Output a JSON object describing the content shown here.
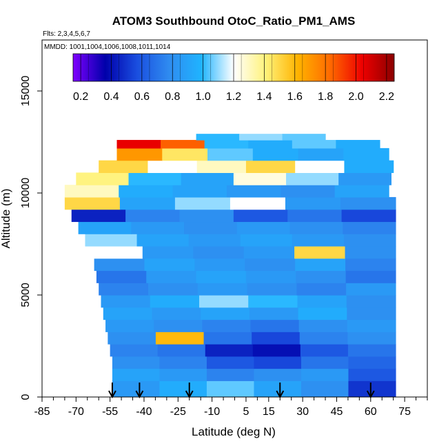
{
  "chart_data": {
    "type": "heatmap",
    "title": "ATOM3 Southbound OtoC_Ratio_PM1_AMS",
    "subtitle_flights": "Flts: 2,3,4,5,6,7",
    "subtitle_dates": "MMDD: 1001,1004,1006,1008,1011,1014",
    "xlabel": "Latitude (deg N)",
    "ylabel": "Altitude (m)",
    "xlim": [
      -85,
      85
    ],
    "ylim": [
      0,
      17500
    ],
    "x_ticks": [
      "-85",
      "-70",
      "-55",
      "-40",
      "-25",
      "-10",
      "5",
      "15",
      "30",
      "45",
      "60",
      "75"
    ],
    "x_tick_values": [
      -85,
      -70,
      -55,
      -40,
      -25,
      -10,
      5,
      15,
      30,
      45,
      60,
      75
    ],
    "y_ticks": [
      "0",
      "5000",
      "10000",
      "15000"
    ],
    "y_tick_values": [
      0,
      5000,
      10000,
      15000
    ],
    "colorbar": {
      "ticks": [
        "0.2",
        "0.4",
        "0.6",
        "0.8",
        "1.0",
        "1.2",
        "1.4",
        "1.6",
        "1.8",
        "2.0",
        "2.2"
      ],
      "tick_values": [
        0.2,
        0.4,
        0.6,
        0.8,
        1.0,
        1.2,
        1.4,
        1.6,
        1.8,
        2.0,
        2.2
      ],
      "range": [
        0.15,
        2.25
      ],
      "colors": [
        "#7f00ff",
        "#0000aa",
        "#1a4fe0",
        "#2f8cf0",
        "#1fb4ff",
        "#ffffff",
        "#fff27a",
        "#ffb300",
        "#ff6a00",
        "#ee0000",
        "#8b0000"
      ]
    },
    "arrow_latitudes": [
      -54,
      -42,
      -20,
      20,
      60
    ],
    "layers": [
      {
        "alt_range": [
          0,
          800
        ],
        "lat_range": [
          -54,
          71
        ],
        "values": [
          0.85,
          0.95,
          1.05,
          0.9,
          0.8,
          0.5
        ]
      },
      {
        "alt_range": [
          800,
          1400
        ],
        "lat_range": [
          -54,
          71
        ],
        "values": [
          0.9,
          0.85,
          0.75,
          0.8,
          0.85,
          0.6
        ]
      },
      {
        "alt_range": [
          1400,
          2000
        ],
        "lat_range": [
          -54,
          71
        ],
        "values": [
          0.8,
          0.75,
          0.6,
          0.55,
          0.7,
          0.65
        ]
      },
      {
        "alt_range": [
          2000,
          2600
        ],
        "lat_range": [
          -55,
          71
        ],
        "values": [
          0.75,
          0.7,
          0.45,
          0.4,
          0.6,
          0.7
        ]
      },
      {
        "alt_range": [
          2600,
          3200
        ],
        "lat_range": [
          -56,
          71
        ],
        "values": [
          0.8,
          1.6,
          0.7,
          0.55,
          0.75,
          0.8
        ]
      },
      {
        "alt_range": [
          3200,
          3800
        ],
        "lat_range": [
          -57,
          71
        ],
        "values": [
          0.85,
          0.8,
          0.75,
          0.7,
          0.8,
          0.85
        ]
      },
      {
        "alt_range": [
          3800,
          4400
        ],
        "lat_range": [
          -58,
          71
        ],
        "values": [
          0.9,
          0.85,
          0.9,
          0.85,
          0.95,
          0.8
        ]
      },
      {
        "alt_range": [
          4400,
          5000
        ],
        "lat_range": [
          -59,
          71
        ],
        "values": [
          0.85,
          0.95,
          1.1,
          1.0,
          0.9,
          0.8
        ]
      },
      {
        "alt_range": [
          5000,
          5600
        ],
        "lat_range": [
          -60,
          71
        ],
        "values": [
          0.75,
          0.8,
          0.85,
          0.8,
          0.75,
          0.85
        ]
      },
      {
        "alt_range": [
          5600,
          6200
        ],
        "lat_range": [
          -61,
          71
        ],
        "values": [
          0.7,
          0.85,
          0.9,
          0.85,
          0.8,
          0.7
        ]
      },
      {
        "alt_range": [
          6200,
          6800
        ],
        "lat_range": [
          -62,
          71
        ],
        "values": [
          0.8,
          0.9,
          0.85,
          0.8,
          0.9,
          0.75
        ]
      },
      {
        "alt_range": [
          6800,
          7400
        ],
        "lat_range": [
          -63,
          71
        ],
        "values": [
          1.2,
          0.85,
          0.8,
          0.85,
          1.5,
          0.8
        ]
      },
      {
        "alt_range": [
          7400,
          8000
        ],
        "lat_range": [
          -66,
          71
        ],
        "values": [
          1.1,
          0.9,
          0.85,
          0.9,
          0.85,
          0.8
        ]
      },
      {
        "alt_range": [
          8000,
          8600
        ],
        "lat_range": [
          -69,
          71
        ],
        "values": [
          0.9,
          0.85,
          0.8,
          0.85,
          0.8,
          0.75
        ]
      },
      {
        "alt_range": [
          8600,
          9200
        ],
        "lat_range": [
          -72,
          71
        ],
        "values": [
          0.45,
          0.75,
          0.8,
          0.6,
          0.7,
          0.55
        ]
      },
      {
        "alt_range": [
          9200,
          9800
        ],
        "lat_range": [
          -75,
          71
        ],
        "values": [
          1.5,
          0.9,
          1.1,
          1.2,
          0.85,
          0.8
        ]
      },
      {
        "alt_range": [
          9800,
          10400
        ],
        "lat_range": [
          -75,
          68
        ],
        "values": [
          1.3,
          0.95,
          0.9,
          0.85,
          0.8,
          0.9
        ]
      },
      {
        "alt_range": [
          10400,
          11000
        ],
        "lat_range": [
          -70,
          69
        ],
        "values": [
          1.4,
          1.0,
          0.9,
          1.25,
          1.1,
          0.85
        ]
      },
      {
        "alt_range": [
          11000,
          11600
        ],
        "lat_range": [
          -60,
          70
        ],
        "values": [
          1.5,
          1.2,
          1.3,
          1.5,
          1.2,
          0.95
        ]
      },
      {
        "alt_range": [
          11600,
          12200
        ],
        "lat_range": [
          -52,
          68
        ],
        "values": [
          1.7,
          1.45,
          1.05,
          0.95,
          0.9,
          0.95
        ]
      },
      {
        "alt_range": [
          12200,
          12600
        ],
        "lat_range": [
          -52,
          64
        ],
        "values": [
          2.05,
          1.85,
          1.0,
          0.95,
          1.05,
          0.95
        ]
      },
      {
        "alt_range": [
          12600,
          12900
        ],
        "lat_range": [
          -17,
          40
        ],
        "values": [
          1.0,
          1.1,
          1.05
        ]
      }
    ]
  }
}
